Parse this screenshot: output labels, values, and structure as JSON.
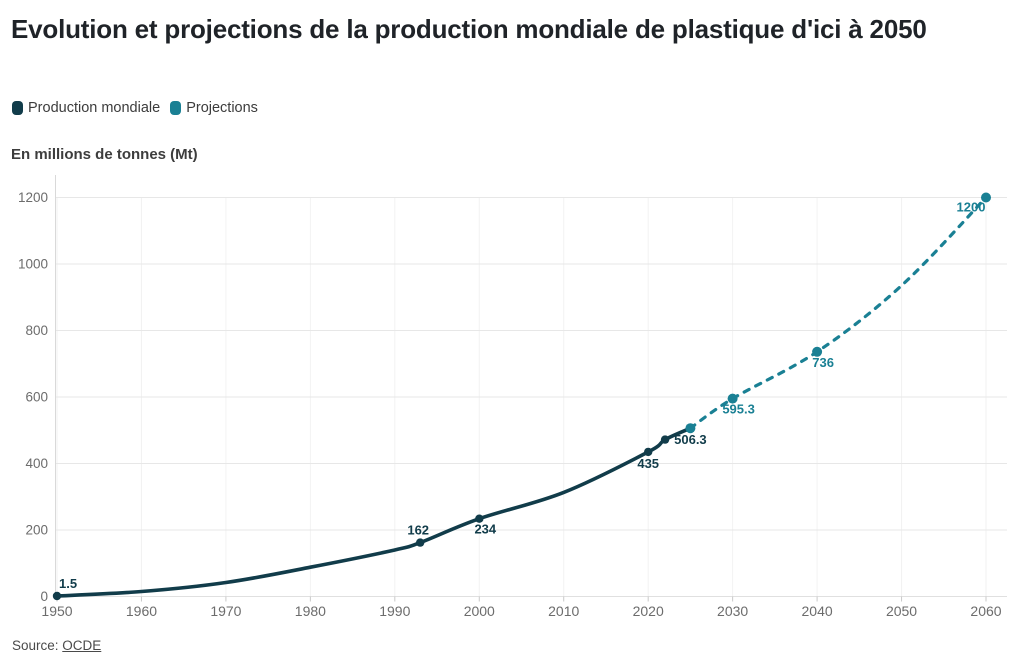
{
  "header": {
    "title": "Evolution et projections de la production mondiale de plastique d'ici à 2050"
  },
  "legend": {
    "items": [
      {
        "label": "Production mondiale",
        "color": "#113c4a"
      },
      {
        "label": "Projections",
        "color": "#1a8094"
      }
    ]
  },
  "axis_title": "En millions de tonnes (Mt)",
  "footer": {
    "source_prefix": "Source: ",
    "source_link": "OCDE"
  },
  "chart_data": {
    "type": "line",
    "title": "Evolution et projections de la production mondiale de plastique d'ici à 2050",
    "ylabel": "En millions de tonnes (Mt)",
    "xlim": [
      1950,
      2060
    ],
    "ylim": [
      0,
      1200
    ],
    "x_ticks": [
      1950,
      1960,
      1970,
      1980,
      1990,
      2000,
      2010,
      2020,
      2030,
      2040,
      2050,
      2060
    ],
    "y_ticks": [
      0,
      200,
      400,
      600,
      800,
      1000,
      1200
    ],
    "grid": true,
    "legend_position": "top-left",
    "series": [
      {
        "name": "Production mondiale",
        "color": "#113c4a",
        "style": "solid",
        "points": [
          {
            "x": 1950,
            "y": 1.5,
            "marker": true,
            "label": "1.5",
            "label_pos": "above-right"
          },
          {
            "x": 1960,
            "y": 15
          },
          {
            "x": 1970,
            "y": 42
          },
          {
            "x": 1980,
            "y": 88
          },
          {
            "x": 1990,
            "y": 140
          },
          {
            "x": 1993,
            "y": 162,
            "marker": true,
            "label": "162",
            "label_pos": "above"
          },
          {
            "x": 2000,
            "y": 234,
            "marker": true,
            "label": "234",
            "label_pos": "below-right"
          },
          {
            "x": 2010,
            "y": 313
          },
          {
            "x": 2020,
            "y": 435,
            "marker": true,
            "label": "435",
            "label_pos": "below"
          },
          {
            "x": 2022,
            "y": 472,
            "marker": true
          },
          {
            "x": 2025,
            "y": 506.3,
            "marker": false,
            "label": "506.3",
            "label_pos": "below"
          }
        ]
      },
      {
        "name": "Projections",
        "color": "#1a8094",
        "style": "dashed",
        "points": [
          {
            "x": 2025,
            "y": 506.3,
            "marker": true
          },
          {
            "x": 2030,
            "y": 595.3,
            "marker": true,
            "label": "595.3",
            "label_pos": "below-right"
          },
          {
            "x": 2040,
            "y": 736,
            "marker": true,
            "label": "736",
            "label_pos": "below-right"
          },
          {
            "x": 2050,
            "y": 935
          },
          {
            "x": 2060,
            "y": 1200,
            "marker": true,
            "label": "1200",
            "label_pos": "below-left"
          }
        ]
      }
    ]
  }
}
